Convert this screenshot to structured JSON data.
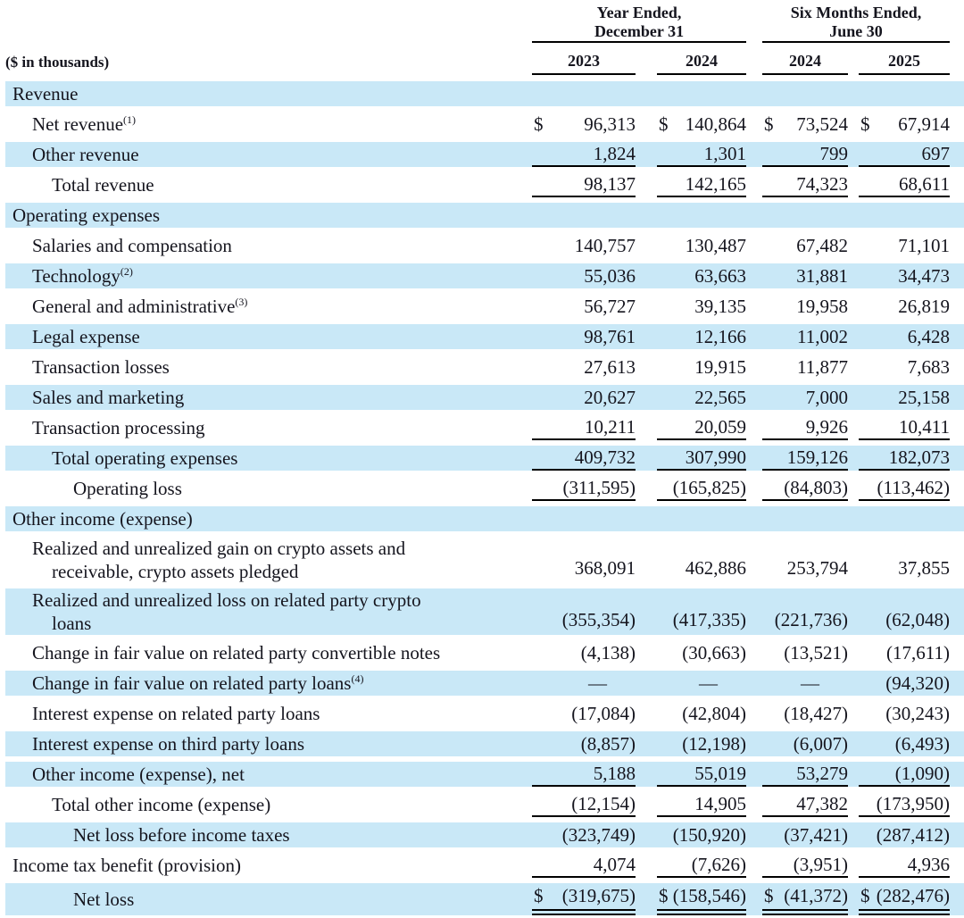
{
  "table": {
    "units_label": "($ in thousands)",
    "currency_symbol": "$",
    "em_dash": "—",
    "column_groups": [
      {
        "line1": "Year Ended,",
        "line2": "December 31",
        "years": [
          "2023",
          "2024"
        ]
      },
      {
        "line1": "Six Months Ended,",
        "line2": "June 30",
        "years": [
          "2024",
          "2025"
        ]
      }
    ],
    "columns": [
      "2023",
      "2024",
      "2024",
      "2025"
    ],
    "colors": {
      "row_highlight": "#c9e8f7",
      "text": "#15151e",
      "rule": "#000000"
    },
    "rows": [
      {
        "label": "Revenue",
        "indent": 0,
        "bg": "blue"
      },
      {
        "label": "Net revenue",
        "sup": "(1)",
        "indent": 1,
        "bg": "white",
        "dollar": true,
        "values": [
          "96,313",
          "140,864",
          "73,524",
          "67,914"
        ]
      },
      {
        "label": "Other revenue",
        "indent": 1,
        "bg": "blue",
        "underline": true,
        "values": [
          "1,824",
          "1,301",
          "799",
          "697"
        ]
      },
      {
        "label": "Total revenue",
        "indent": 2,
        "bg": "white",
        "underline": true,
        "values": [
          "98,137",
          "142,165",
          "74,323",
          "68,611"
        ]
      },
      {
        "label": "Operating expenses",
        "indent": 0,
        "bg": "blue"
      },
      {
        "label": "Salaries and compensation",
        "indent": 1,
        "bg": "white",
        "values": [
          "140,757",
          "130,487",
          "67,482",
          "71,101"
        ]
      },
      {
        "label": "Technology",
        "sup": "(2)",
        "indent": 1,
        "bg": "blue",
        "values": [
          "55,036",
          "63,663",
          "31,881",
          "34,473"
        ]
      },
      {
        "label": "General and administrative",
        "sup": "(3)",
        "indent": 1,
        "bg": "white",
        "values": [
          "56,727",
          "39,135",
          "19,958",
          "26,819"
        ]
      },
      {
        "label": "Legal expense",
        "indent": 1,
        "bg": "blue",
        "values": [
          "98,761",
          "12,166",
          "11,002",
          "6,428"
        ]
      },
      {
        "label": "Transaction losses",
        "indent": 1,
        "bg": "white",
        "values": [
          "27,613",
          "19,915",
          "11,877",
          "7,683"
        ]
      },
      {
        "label": "Sales and marketing",
        "indent": 1,
        "bg": "blue",
        "values": [
          "20,627",
          "22,565",
          "7,000",
          "25,158"
        ]
      },
      {
        "label": "Transaction processing",
        "indent": 1,
        "bg": "white",
        "underline": true,
        "values": [
          "10,211",
          "20,059",
          "9,926",
          "10,411"
        ]
      },
      {
        "label": "Total operating expenses",
        "indent": 2,
        "bg": "blue",
        "underline": true,
        "values": [
          "409,732",
          "307,990",
          "159,126",
          "182,073"
        ]
      },
      {
        "label": "Operating loss",
        "indent": 3,
        "bg": "white",
        "underline": true,
        "values": [
          "(311,595)",
          "(165,825)",
          "(84,803)",
          "(113,462)"
        ]
      },
      {
        "label": "Other income (expense)",
        "indent": 0,
        "bg": "blue"
      },
      {
        "label": "Realized and unrealized gain on crypto assets and",
        "label2": "receivable, crypto assets pledged",
        "indent": 1,
        "bg": "white",
        "values": [
          "368,091",
          "462,886",
          "253,794",
          "37,855"
        ]
      },
      {
        "label": "Realized and unrealized loss on related party crypto",
        "label2": "loans",
        "indent": 1,
        "bg": "blue",
        "values": [
          "(355,354)",
          "(417,335)",
          "(221,736)",
          "(62,048)"
        ]
      },
      {
        "label": "Change in fair value on related party convertible notes",
        "indent": 1,
        "bg": "white",
        "values": [
          "(4,138)",
          "(30,663)",
          "(13,521)",
          "(17,611)"
        ]
      },
      {
        "label": "Change in fair value on related party loans",
        "sup": "(4)",
        "indent": 1,
        "bg": "blue",
        "values": [
          "—",
          "—",
          "—",
          "(94,320)"
        ]
      },
      {
        "label": "Interest expense on related party loans",
        "indent": 1,
        "bg": "white",
        "values": [
          "(17,084)",
          "(42,804)",
          "(18,427)",
          "(30,243)"
        ]
      },
      {
        "label": "Interest expense on third party loans",
        "indent": 1,
        "bg": "blue",
        "values": [
          "(8,857)",
          "(12,198)",
          "(6,007)",
          "(6,493)"
        ]
      },
      {
        "label": "Other income (expense), net",
        "indent": 1,
        "bg": "blue",
        "underline": true,
        "values": [
          "5,188",
          "55,019",
          "53,279",
          "(1,090)"
        ]
      },
      {
        "label": "Total other income (expense)",
        "indent": 2,
        "bg": "white",
        "underline": true,
        "values": [
          "(12,154)",
          "14,905",
          "47,382",
          "(173,950)"
        ]
      },
      {
        "label": "Net loss before income taxes",
        "indent": 3,
        "bg": "blue",
        "values": [
          "(323,749)",
          "(150,920)",
          "(37,421)",
          "(287,412)"
        ]
      },
      {
        "label": "Income tax benefit (provision)",
        "indent": 0,
        "bg": "white",
        "underline": true,
        "values": [
          "4,074",
          "(7,626)",
          "(3,951)",
          "4,936"
        ]
      },
      {
        "label": "Net loss",
        "indent": 3,
        "bg": "blue",
        "dollar": true,
        "double_underline": true,
        "values": [
          "(319,675)",
          "(158,546)",
          "(41,372)",
          "(282,476)"
        ]
      }
    ]
  }
}
